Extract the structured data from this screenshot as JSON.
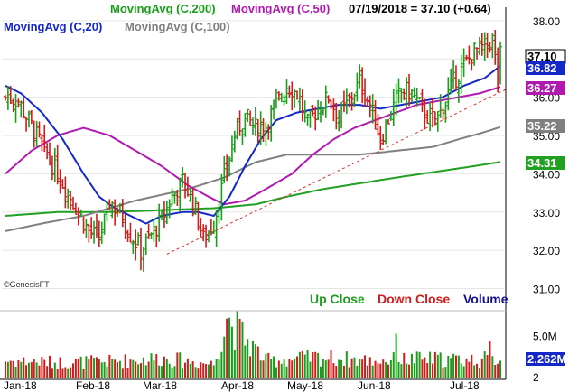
{
  "header": {
    "ma200": "MovingAvg (C,200)",
    "ma50": "MovingAvg (C,50)",
    "ma20": "MovingAvg (C,20)",
    "ma100": "MovingAvg (C,100)",
    "quote": "07/19/2018 = 37.10 (+0.64)"
  },
  "colors": {
    "up": "#1a9e1a",
    "down": "#d11c1c",
    "ma20": "#1428c8",
    "ma50": "#b01ab0",
    "ma100": "#808080",
    "ma200": "#21a021",
    "volume_title": "#101090",
    "trendline": "#d83030"
  },
  "watermark": "©GenesisFT",
  "volume_legend": {
    "up": "Up Close",
    "down": "Down Close",
    "volume": "Volume"
  },
  "chart_data": {
    "type": "candlestick",
    "price_axis": {
      "ticks": [
        "38.00",
        "37.00",
        "36.00",
        "35.00",
        "34.00",
        "33.00",
        "32.00",
        "31.00"
      ],
      "ylim": [
        30.8,
        38.35
      ]
    },
    "volume_axis": {
      "ticks": [
        "5.0M",
        "2"
      ],
      "ylim": [
        0,
        7.5
      ]
    },
    "x_labels": [
      "Jan-18",
      "Feb-18",
      "Mar-18",
      "Apr-18",
      "May-18",
      "Jun-18",
      "Jul-18"
    ],
    "last_values": [
      {
        "series": "price",
        "value": "37.10",
        "color": "#ffffff",
        "text": "#000000"
      },
      {
        "series": "ma20",
        "value": "36.82",
        "color": "#1428c8",
        "text": "#ffffff"
      },
      {
        "series": "ma50",
        "value": "36.27",
        "color": "#b01ab0",
        "text": "#ffffff"
      },
      {
        "series": "ma100",
        "value": "35.22",
        "color": "#808080",
        "text": "#ffffff"
      },
      {
        "series": "ma200",
        "value": "34.31",
        "color": "#21a021",
        "text": "#ffffff"
      },
      {
        "series": "volume",
        "value": "2.262M",
        "color": "#1428c8",
        "text": "#ffffff"
      }
    ],
    "price_keypoints": [
      [
        0,
        36.0
      ],
      [
        5,
        35.9
      ],
      [
        8,
        35.5
      ],
      [
        12,
        35.0
      ],
      [
        15,
        34.6
      ],
      [
        20,
        34.0
      ],
      [
        25,
        33.4
      ],
      [
        28,
        33.0
      ],
      [
        32,
        32.5
      ],
      [
        36,
        32.3
      ],
      [
        40,
        33.2
      ],
      [
        44,
        33.0
      ],
      [
        48,
        32.4
      ],
      [
        52,
        32.0
      ],
      [
        56,
        32.4
      ],
      [
        60,
        32.8
      ],
      [
        64,
        33.4
      ],
      [
        68,
        33.8
      ],
      [
        72,
        33.3
      ],
      [
        76,
        32.3
      ],
      [
        80,
        32.7
      ],
      [
        84,
        33.9
      ],
      [
        88,
        35.0
      ],
      [
        92,
        35.5
      ],
      [
        96,
        35.2
      ],
      [
        100,
        35.3
      ],
      [
        104,
        35.8
      ],
      [
        108,
        36.3
      ],
      [
        112,
        36.1
      ],
      [
        116,
        35.3
      ],
      [
        120,
        35.7
      ],
      [
        124,
        36.0
      ],
      [
        128,
        35.5
      ],
      [
        132,
        35.9
      ],
      [
        136,
        36.4
      ],
      [
        140,
        35.8
      ],
      [
        144,
        34.9
      ],
      [
        148,
        35.6
      ],
      [
        152,
        36.2
      ],
      [
        156,
        36.1
      ],
      [
        160,
        35.7
      ],
      [
        164,
        35.3
      ],
      [
        168,
        35.8
      ],
      [
        172,
        36.4
      ],
      [
        176,
        36.8
      ],
      [
        180,
        37.2
      ],
      [
        184,
        37.3
      ],
      [
        187,
        37.5
      ],
      [
        189,
        36.5
      ],
      [
        190,
        37.1
      ]
    ],
    "ma20_keypoints": [
      [
        0,
        36.3
      ],
      [
        6,
        36.1
      ],
      [
        14,
        35.6
      ],
      [
        22,
        34.9
      ],
      [
        30,
        34.0
      ],
      [
        36,
        33.4
      ],
      [
        42,
        33.1
      ],
      [
        48,
        32.9
      ],
      [
        54,
        32.7
      ],
      [
        60,
        32.9
      ],
      [
        68,
        33.0
      ],
      [
        74,
        33.0
      ],
      [
        80,
        32.9
      ],
      [
        86,
        33.4
      ],
      [
        92,
        34.2
      ],
      [
        98,
        34.9
      ],
      [
        104,
        35.4
      ],
      [
        112,
        35.6
      ],
      [
        120,
        35.7
      ],
      [
        128,
        35.8
      ],
      [
        136,
        35.8
      ],
      [
        144,
        35.7
      ],
      [
        152,
        35.8
      ],
      [
        160,
        35.9
      ],
      [
        168,
        36.0
      ],
      [
        176,
        36.3
      ],
      [
        184,
        36.5
      ],
      [
        190,
        36.82
      ]
    ],
    "ma50_keypoints": [
      [
        0,
        34.0
      ],
      [
        10,
        34.6
      ],
      [
        20,
        35.0
      ],
      [
        30,
        35.2
      ],
      [
        40,
        35.0
      ],
      [
        50,
        34.6
      ],
      [
        60,
        34.2
      ],
      [
        70,
        33.7
      ],
      [
        78,
        33.4
      ],
      [
        84,
        33.2
      ],
      [
        92,
        33.3
      ],
      [
        100,
        33.6
      ],
      [
        110,
        34.0
      ],
      [
        118,
        34.5
      ],
      [
        126,
        34.9
      ],
      [
        134,
        35.2
      ],
      [
        142,
        35.4
      ],
      [
        150,
        35.6
      ],
      [
        158,
        35.8
      ],
      [
        166,
        35.9
      ],
      [
        174,
        36.0
      ],
      [
        182,
        36.1
      ],
      [
        190,
        36.27
      ]
    ],
    "ma100_keypoints": [
      [
        0,
        32.5
      ],
      [
        14,
        32.7
      ],
      [
        30,
        32.9
      ],
      [
        50,
        33.3
      ],
      [
        70,
        33.6
      ],
      [
        84,
        33.9
      ],
      [
        96,
        34.3
      ],
      [
        108,
        34.5
      ],
      [
        120,
        34.5
      ],
      [
        136,
        34.5
      ],
      [
        150,
        34.6
      ],
      [
        164,
        34.7
      ],
      [
        174,
        34.9
      ],
      [
        182,
        35.05
      ],
      [
        190,
        35.22
      ]
    ],
    "ma200_keypoints": [
      [
        0,
        32.9
      ],
      [
        20,
        33.0
      ],
      [
        40,
        33.0
      ],
      [
        60,
        33.05
      ],
      [
        80,
        33.1
      ],
      [
        96,
        33.2
      ],
      [
        108,
        33.4
      ],
      [
        122,
        33.6
      ],
      [
        136,
        33.75
      ],
      [
        150,
        33.9
      ],
      [
        160,
        34.0
      ],
      [
        170,
        34.1
      ],
      [
        180,
        34.2
      ],
      [
        190,
        34.31
      ]
    ],
    "trendline": {
      "from": [
        62,
        31.9
      ],
      "to": [
        192,
        36.2
      ]
    },
    "volume_keypoints": [
      [
        0,
        2.0
      ],
      [
        20,
        1.8
      ],
      [
        40,
        1.9
      ],
      [
        60,
        2.3
      ],
      [
        80,
        1.6
      ],
      [
        85,
        7.0
      ],
      [
        100,
        2.0
      ],
      [
        120,
        2.4
      ],
      [
        140,
        2.0
      ],
      [
        160,
        2.2
      ],
      [
        180,
        2.1
      ],
      [
        190,
        2.262
      ]
    ],
    "n_bars": 191
  }
}
